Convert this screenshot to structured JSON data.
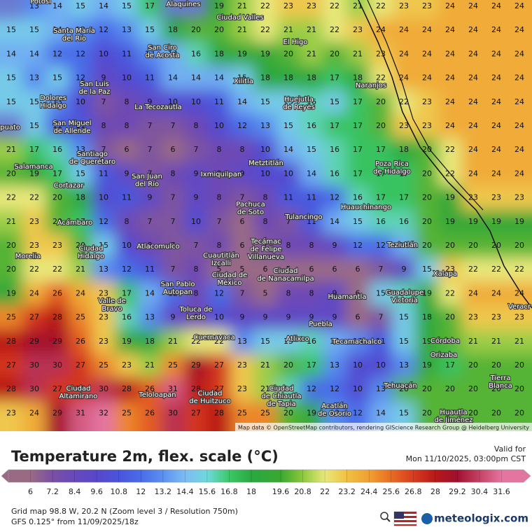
{
  "map": {
    "grid": [
      [
        null,
        13,
        14,
        15,
        14,
        15,
        17,
        null,
        null,
        19,
        21,
        22,
        23,
        23,
        22,
        21,
        22,
        23,
        23,
        24,
        24,
        24,
        24
      ],
      [
        15,
        15,
        14,
        13,
        12,
        13,
        15,
        18,
        20,
        20,
        21,
        22,
        21,
        21,
        22,
        23,
        24,
        24,
        24,
        24,
        24,
        24,
        24
      ],
      [
        14,
        14,
        12,
        12,
        10,
        11,
        13,
        14,
        16,
        18,
        19,
        19,
        20,
        21,
        20,
        21,
        23,
        24,
        24,
        24,
        24,
        24,
        24
      ],
      [
        15,
        13,
        15,
        12,
        9,
        10,
        11,
        14,
        14,
        14,
        15,
        18,
        18,
        18,
        17,
        18,
        22,
        24,
        24,
        24,
        24,
        24,
        24
      ],
      [
        15,
        15,
        13,
        10,
        7,
        8,
        9,
        10,
        10,
        11,
        14,
        15,
        15,
        16,
        15,
        17,
        20,
        22,
        23,
        24,
        24,
        24,
        24
      ],
      [
        null,
        15,
        11,
        11,
        8,
        8,
        7,
        7,
        8,
        10,
        12,
        13,
        15,
        16,
        17,
        17,
        20,
        23,
        23,
        24,
        24,
        24,
        24
      ],
      [
        21,
        17,
        16,
        13,
        7,
        6,
        7,
        6,
        7,
        8,
        8,
        10,
        14,
        15,
        16,
        17,
        17,
        18,
        20,
        22,
        24,
        24,
        24
      ],
      [
        20,
        19,
        17,
        15,
        11,
        9,
        7,
        8,
        9,
        8,
        9,
        10,
        10,
        14,
        16,
        17,
        17,
        17,
        20,
        22,
        24,
        24,
        24
      ],
      [
        22,
        22,
        20,
        18,
        10,
        11,
        9,
        7,
        9,
        8,
        7,
        8,
        11,
        11,
        12,
        16,
        17,
        17,
        20,
        19,
        23,
        23,
        23
      ],
      [
        21,
        23,
        20,
        17,
        12,
        8,
        7,
        7,
        10,
        7,
        6,
        8,
        7,
        11,
        14,
        15,
        16,
        16,
        20,
        19,
        19,
        19,
        19
      ],
      [
        20,
        23,
        23,
        20,
        15,
        10,
        8,
        7,
        7,
        8,
        6,
        7,
        8,
        8,
        9,
        12,
        12,
        14,
        20,
        20,
        20,
        20,
        20
      ],
      [
        20,
        22,
        22,
        21,
        13,
        12,
        11,
        7,
        8,
        5,
        5,
        6,
        5,
        6,
        6,
        6,
        7,
        9,
        15,
        23,
        22,
        22,
        22
      ],
      [
        19,
        24,
        26,
        24,
        23,
        17,
        14,
        12,
        8,
        12,
        7,
        5,
        8,
        8,
        9,
        6,
        15,
        16,
        19,
        22,
        24,
        24,
        24
      ],
      [
        25,
        27,
        28,
        25,
        23,
        16,
        13,
        9,
        8,
        10,
        9,
        9,
        9,
        9,
        9,
        6,
        7,
        15,
        18,
        20,
        23,
        23,
        23
      ],
      [
        28,
        29,
        29,
        26,
        23,
        19,
        18,
        21,
        22,
        22,
        13,
        15,
        15,
        16,
        14,
        13,
        11,
        15,
        19,
        20,
        21,
        21,
        21
      ],
      [
        27,
        30,
        30,
        27,
        25,
        23,
        21,
        25,
        29,
        27,
        23,
        21,
        20,
        17,
        13,
        10,
        10,
        13,
        19,
        17,
        20,
        20,
        20
      ],
      [
        28,
        30,
        27,
        27,
        30,
        28,
        26,
        31,
        28,
        27,
        23,
        21,
        16,
        12,
        12,
        10,
        13,
        20,
        20,
        20,
        20,
        20,
        20
      ],
      [
        23,
        24,
        29,
        31,
        32,
        25,
        26,
        30,
        27,
        28,
        25,
        25,
        20,
        19,
        13,
        12,
        14,
        15,
        20,
        20,
        20,
        20,
        20
      ]
    ],
    "places": [
      [
        "Potosí"
      ],
      [
        "Alaquines"
      ],
      [
        "Ciudad Valles"
      ],
      [
        "Santa María",
        "del Río"
      ],
      [
        "San Ciro",
        "de Acosta"
      ],
      [
        "El Higo"
      ],
      [
        "San Luis",
        "de la Paz"
      ],
      [
        "Xilitla"
      ],
      [
        "Naranjos"
      ],
      [
        "Dolores",
        "Hidalgo"
      ],
      [
        "La Tecozautla"
      ],
      [
        "Huejutla",
        "de Reyes"
      ],
      [
        "San Miguel",
        "de Allende"
      ],
      [
        "Irapuato"
      ],
      [
        "Santiago",
        "de Querétaro"
      ],
      [
        "Metztitlán"
      ],
      [
        "Poza Rica",
        "de Hidalgo"
      ],
      [
        "Salamanca"
      ],
      [
        "Ixmiquilpan"
      ],
      [
        "San Juan",
        "del Río"
      ],
      [
        "Cortazar"
      ],
      [
        "Pachuca",
        "de Soto"
      ],
      [
        "Huauchinango"
      ],
      [
        "Acámbaro"
      ],
      [
        "Tulancingo"
      ],
      [
        "Morelia"
      ],
      [
        "Ciudad",
        "Hidalgo"
      ],
      [
        "Atlacomulco"
      ],
      [
        "Cuautitlán",
        "Izcalli"
      ],
      [
        "Tecámac",
        "de Felipe",
        "Villanueva"
      ],
      [
        "Teziutlán"
      ],
      [
        "Ciudad de",
        "México"
      ],
      [
        "Ciudad",
        "de Nanacamilpa"
      ],
      [
        "Xalapa"
      ],
      [
        "San Pablo",
        "Autopan"
      ],
      [
        "Guadalupe",
        "Victoria"
      ],
      [
        "Huamantla"
      ],
      [
        "Valle de",
        "Bravo"
      ],
      [
        "Toluca de",
        "Lerdo"
      ],
      [
        "Veracr"
      ],
      [
        "Puebla"
      ],
      [
        "Atlixco"
      ],
      [
        "Tecamachalco"
      ],
      [
        "Cuernavaca"
      ],
      [
        "Córdoba"
      ],
      [
        "Orizaba"
      ],
      [
        "Tierra",
        "Blanca"
      ],
      [
        "Tehuacán"
      ],
      [
        "Ciudad",
        "Altamirano"
      ],
      [
        "Teloloapan"
      ],
      [
        "Ciudad",
        "de Huitzuco"
      ],
      [
        "Ciudad",
        "de Chiautla",
        "de Tapia"
      ],
      [
        "Acatlán",
        "de Osorio"
      ],
      [
        "Huautla",
        "de Jiménez"
      ]
    ],
    "attribution": "Map data © OpenStreetMap contributors, rendering GIScience Research Group @ Heidelberg University"
  },
  "legend": {
    "title": "Temperature 2m, flex. scale (°C)",
    "range": [
      4.8,
      32.8
    ],
    "ticks": [
      6,
      7.2,
      8.4,
      9.6,
      10.8,
      12,
      13.2,
      14.4,
      15.6,
      16.8,
      18,
      19.6,
      20.8,
      22,
      23.2,
      24.4,
      25.6,
      26.8,
      28,
      29.2,
      30.4,
      31.6
    ],
    "colors": [
      "#9a6a84",
      "#7a4fa4",
      "#6848bc",
      "#5848cc",
      "#4a54dc",
      "#4a6ce8",
      "#5c90f0",
      "#7cbcf4",
      "#70d8dc",
      "#3cc868",
      "#2aa840",
      "#3aa832",
      "#8cc83c",
      "#e8e87a",
      "#f0c044",
      "#f0a032",
      "#e86c22",
      "#d83c20",
      "#b81818",
      "#a01030",
      "#c44264",
      "#e474a0"
    ]
  },
  "valid": {
    "label": "Valid for",
    "time": "Mon 11/10/2025, 03:00pm CST"
  },
  "footer": {
    "grid": "Grid map 98.8 W, 20.2 N (Zoom level 3 / Resolution 750m)",
    "model": "GFS 0.125° from  11/09/2025/18z",
    "brand": "meteologix.com"
  }
}
